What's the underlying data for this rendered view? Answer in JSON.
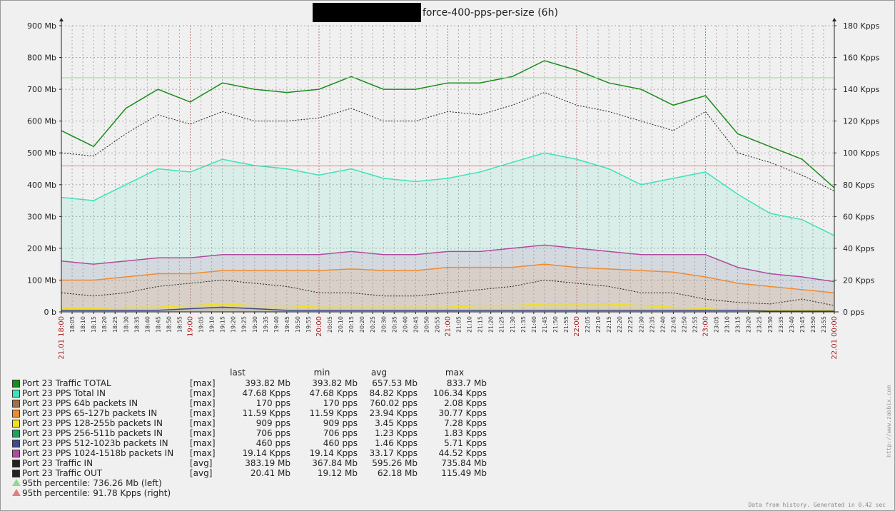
{
  "header": {
    "title": "force-400-pps-per-size  (6h)"
  },
  "footer": {
    "generated_text": "Data from history. Generated in 0.42 sec",
    "credit_text": "http://www.zabbix.com"
  },
  "colors": {
    "plot_background": "#f0f0f0",
    "grid": "#aaaaaa",
    "traffic_total": "#1a8c1a",
    "pps_total": "#3de3b8",
    "pps_64b": "#a0704a",
    "pps_65_127b": "#f08a30",
    "pps_128_255b": "#f0e020",
    "pps_256_511b": "#20a060",
    "pps_512_1023b": "#404a8a",
    "pps_1024_1518b": "#b04aa0",
    "traffic_in": "#222222",
    "traffic_out": "#222222",
    "percentile_left": "#8fd98f",
    "percentile_right": "#e08080"
  },
  "chart_data": {
    "type": "line",
    "title": "force-400-pps-per-size  (6h)",
    "left_axis": {
      "unit": "Mb",
      "ticks": [
        "0 b",
        "100 Mb",
        "200 Mb",
        "300 Mb",
        "400 Mb",
        "500 Mb",
        "600 Mb",
        "700 Mb",
        "800 Mb",
        "900 Mb"
      ],
      "ylim": [
        0,
        900
      ]
    },
    "right_axis": {
      "unit": "Kpps",
      "ticks": [
        "0 pps",
        "20 Kpps",
        "40 Kpps",
        "60 Kpps",
        "80 Kpps",
        "100 Kpps",
        "120 Kpps",
        "140 Kpps",
        "160 Kpps",
        "180 Kpps"
      ],
      "ylim": [
        0,
        180
      ]
    },
    "x_axis": {
      "start_label": "21.01 18:00",
      "end_label": "22.01 00:00",
      "hour_labels": [
        "19:00",
        "20:00",
        "21:00",
        "22:00",
        "23:00"
      ],
      "minute_labels": [
        "18:05",
        "18:10",
        "18:15",
        "18:20",
        "18:25",
        "18:30",
        "18:35",
        "18:40",
        "18:45",
        "18:50",
        "18:55",
        "19:05",
        "19:10",
        "19:15",
        "19:20",
        "19:25",
        "19:30",
        "19:35",
        "19:40",
        "19:45",
        "19:50",
        "19:55",
        "20:05",
        "20:10",
        "20:15",
        "20:20",
        "20:25",
        "20:30",
        "20:35",
        "20:40",
        "20:45",
        "20:50",
        "20:55",
        "21:05",
        "21:10",
        "21:15",
        "21:20",
        "21:25",
        "21:30",
        "21:35",
        "21:40",
        "21:45",
        "21:50",
        "21:55",
        "22:05",
        "22:10",
        "22:15",
        "22:20",
        "22:25",
        "22:30",
        "22:35",
        "22:40",
        "22:45",
        "22:50",
        "22:55",
        "23:05",
        "23:10",
        "23:15",
        "23:20",
        "23:25",
        "23:30",
        "23:35",
        "23:40",
        "23:45",
        "23:50",
        "23:55"
      ]
    },
    "grid": true,
    "series_time_hours": [
      18.0,
      18.25,
      18.5,
      18.75,
      19.0,
      19.25,
      19.5,
      19.75,
      20.0,
      20.25,
      20.5,
      20.75,
      21.0,
      21.25,
      21.5,
      21.75,
      22.0,
      22.25,
      22.5,
      22.75,
      23.0,
      23.25,
      23.5,
      23.75,
      24.0
    ],
    "series": [
      {
        "name": "Port 23 Traffic TOTAL",
        "axis": "left",
        "style": "line",
        "color_key": "traffic_total",
        "values": [
          570,
          520,
          640,
          700,
          660,
          720,
          700,
          690,
          700,
          740,
          700,
          700,
          720,
          720,
          740,
          790,
          760,
          720,
          700,
          650,
          680,
          560,
          520,
          480,
          390
        ]
      },
      {
        "name": "Port 23 PPS Total  IN",
        "axis": "right",
        "style": "area",
        "color_key": "pps_total",
        "values": [
          72,
          70,
          80,
          90,
          88,
          96,
          92,
          90,
          86,
          90,
          84,
          82,
          84,
          88,
          94,
          100,
          96,
          90,
          80,
          84,
          88,
          74,
          62,
          58,
          48
        ]
      },
      {
        "name": "Port 23 Traffic IN",
        "axis": "left",
        "style": "dotted",
        "color_key": "traffic_in",
        "values": [
          500,
          490,
          560,
          620,
          590,
          630,
          600,
          600,
          610,
          640,
          600,
          600,
          630,
          620,
          650,
          690,
          650,
          630,
          600,
          570,
          630,
          500,
          470,
          430,
          380
        ]
      },
      {
        "name": "Port 23 PPS 1024-1518b packets IN",
        "axis": "right",
        "style": "area",
        "color_key": "pps_1024_1518b",
        "values": [
          32,
          30,
          32,
          34,
          34,
          36,
          36,
          36,
          36,
          38,
          36,
          36,
          38,
          38,
          40,
          42,
          40,
          38,
          36,
          36,
          36,
          28,
          24,
          22,
          19
        ]
      },
      {
        "name": "Port 23 PPS 65-127b packets IN",
        "axis": "right",
        "style": "area",
        "color_key": "pps_65_127b",
        "values": [
          20,
          20,
          22,
          24,
          24,
          26,
          26,
          26,
          26,
          27,
          26,
          26,
          28,
          28,
          28,
          30,
          28,
          27,
          26,
          25,
          22,
          18,
          16,
          14,
          12
        ]
      },
      {
        "name": "Port 23 Traffic OUT",
        "axis": "left",
        "style": "dotted",
        "color_key": "traffic_out",
        "values": [
          60,
          50,
          60,
          80,
          90,
          100,
          90,
          80,
          60,
          60,
          50,
          50,
          60,
          70,
          80,
          100,
          90,
          80,
          60,
          60,
          40,
          30,
          25,
          40,
          20
        ]
      },
      {
        "name": "Port 23 PPS 128-255b packets IN",
        "axis": "right",
        "style": "area",
        "color_key": "pps_128_255b",
        "values": [
          2,
          2,
          3,
          3,
          4,
          5,
          4,
          4,
          3,
          3,
          3,
          3,
          3,
          4,
          4,
          5,
          5,
          5,
          4,
          3,
          2,
          1,
          1,
          1,
          1
        ]
      },
      {
        "name": "Port 23 PPS 512-1023b packets IN",
        "axis": "right",
        "style": "area",
        "color_key": "pps_512_1023b",
        "values": [
          1,
          1,
          1,
          1,
          2,
          3,
          2,
          1,
          1,
          1,
          1,
          1,
          1,
          1,
          1,
          1,
          1,
          1,
          1,
          1,
          1,
          1,
          0.5,
          0.5,
          0.5
        ]
      }
    ],
    "percentile_lines": [
      {
        "label": "95th percentile: 736.26 Mb  (left)",
        "value": 736.26,
        "axis": "left",
        "color_key": "percentile_left"
      },
      {
        "label": "95th percentile: 91.78 Kpps  (right)",
        "value": 91.78,
        "axis": "right",
        "color_key": "percentile_right"
      }
    ]
  },
  "legend": {
    "headers": [
      "last",
      "min",
      "avg",
      "max"
    ],
    "rows": [
      {
        "name": "Port 23 Traffic TOTAL",
        "fn": "[max]",
        "last": "393.82 Mb",
        "min": "393.82 Mb",
        "avg": "657.53 Mb",
        "max": "833.7 Mb",
        "color_key": "traffic_total"
      },
      {
        "name": "Port 23 PPS Total  IN",
        "fn": "[max]",
        "last": "47.68 Kpps",
        "min": "47.68 Kpps",
        "avg": "84.82 Kpps",
        "max": "106.34 Kpps",
        "color_key": "pps_total"
      },
      {
        "name": "Port 23 PPS 64b packets IN",
        "fn": "[max]",
        "last": "170 pps",
        "min": "170 pps",
        "avg": "760.02 pps",
        "max": "2.08 Kpps",
        "color_key": "pps_64b"
      },
      {
        "name": "Port 23 PPS 65-127b packets IN",
        "fn": "[max]",
        "last": "11.59 Kpps",
        "min": "11.59 Kpps",
        "avg": "23.94 Kpps",
        "max": "30.77 Kpps",
        "color_key": "pps_65_127b"
      },
      {
        "name": "Port 23 PPS 128-255b packets IN",
        "fn": "[max]",
        "last": "909 pps",
        "min": "909 pps",
        "avg": "3.45 Kpps",
        "max": "7.28 Kpps",
        "color_key": "pps_128_255b"
      },
      {
        "name": "Port 23 PPS 256-511b packets IN",
        "fn": "[max]",
        "last": "706 pps",
        "min": "706 pps",
        "avg": "1.23 Kpps",
        "max": "1.83 Kpps",
        "color_key": "pps_256_511b"
      },
      {
        "name": "Port 23 PPS 512-1023b packets IN",
        "fn": "[max]",
        "last": "460 pps",
        "min": "460 pps",
        "avg": "1.46 Kpps",
        "max": "5.71 Kpps",
        "color_key": "pps_512_1023b"
      },
      {
        "name": "Port 23 PPS 1024-1518b packets IN",
        "fn": "[max]",
        "last": "19.14 Kpps",
        "min": "19.14 Kpps",
        "avg": "33.17 Kpps",
        "max": "44.52 Kpps",
        "color_key": "pps_1024_1518b"
      },
      {
        "name": "Port 23 Traffic IN",
        "fn": "[avg]",
        "last": "383.19 Mb",
        "min": "367.84 Mb",
        "avg": "595.26 Mb",
        "max": "735.84 Mb",
        "color_key": "traffic_in"
      },
      {
        "name": "Port 23 Traffic OUT",
        "fn": "[avg]",
        "last": "20.41 Mb",
        "min": "19.12 Mb",
        "avg": "62.18 Mb",
        "max": "115.49 Mb",
        "color_key": "traffic_out"
      }
    ]
  }
}
